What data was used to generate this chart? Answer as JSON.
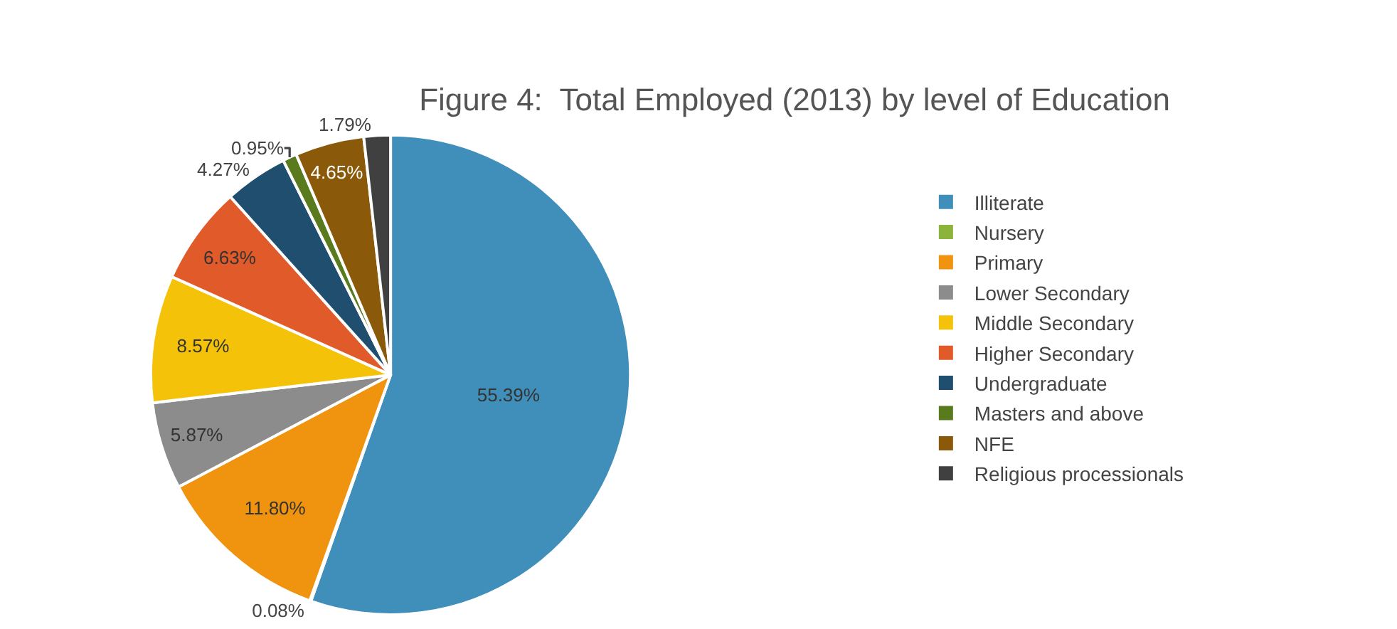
{
  "chart_data": {
    "type": "pie",
    "title": "Figure 4:  Total Employed (2013) by level of Education",
    "categories": [
      "Illiterate",
      "Nursery",
      "Primary",
      "Lower Secondary",
      "Middle Secondary",
      "Higher Secondary",
      "Undergraduate",
      "Masters and above",
      "NFE",
      "Religious processionals"
    ],
    "values": [
      55.39,
      0.08,
      11.8,
      5.87,
      8.57,
      6.63,
      4.27,
      0.95,
      4.65,
      1.79
    ],
    "value_labels": [
      "55.39%",
      "0.08%",
      "11.80%",
      "5.87%",
      "8.57%",
      "6.63%",
      "4.27%",
      "0.95%",
      "4.65%",
      "1.79%"
    ],
    "colors": [
      "#3f8fba",
      "#8db43a",
      "#f0930f",
      "#8c8c8c",
      "#f5c20a",
      "#e05a2a",
      "#1f4e6e",
      "#5a7a1e",
      "#8a5a0a",
      "#404040"
    ],
    "legend": "right"
  }
}
